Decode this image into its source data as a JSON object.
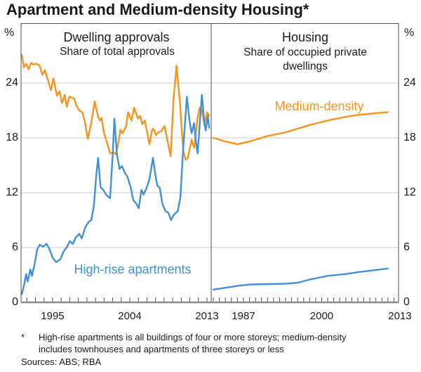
{
  "title": "Apartment and Medium-density Housing*",
  "axis": {
    "unit": "%"
  },
  "footnote": {
    "marker": "*",
    "line1": "High-rise apartments is all buildings of four or more storeys; medium-density",
    "line2": "includes townhouses and apartments of three storeys or less",
    "sources": "Sources: ABS; RBA"
  },
  "colors": {
    "medium_density": "#f7941d",
    "high_rise": "#4190d6",
    "grid": "#c8c8c8",
    "border": "#4d4d4d",
    "baseline": "#8c8c8c"
  },
  "chart_data": [
    {
      "type": "line",
      "panel": "left",
      "title": "Dwelling approvals",
      "subtitle": "Share of total approvals",
      "unit": "%",
      "x_range": [
        1991.32,
        2013.49
      ],
      "x_ticks": [
        1995,
        2004,
        2013
      ],
      "y_range": [
        0,
        30.5
      ],
      "y_ticks": [
        0,
        6,
        12,
        18,
        24
      ],
      "grid": true,
      "series": [
        {
          "name": "Medium-density",
          "color": "#f7941d",
          "points": [
            [
              1991.4,
              27.1
            ],
            [
              1991.65,
              25.7
            ],
            [
              1991.9,
              26.1
            ],
            [
              1992.2,
              25.5
            ],
            [
              1992.5,
              26.2
            ],
            [
              1992.8,
              26.0
            ],
            [
              1993.1,
              26.1
            ],
            [
              1993.5,
              25.9
            ],
            [
              1993.8,
              24.9
            ],
            [
              1994.1,
              25.4
            ],
            [
              1994.5,
              24.2
            ],
            [
              1994.8,
              23.2
            ],
            [
              1995.1,
              24.5
            ],
            [
              1995.5,
              22.6
            ],
            [
              1995.8,
              23.1
            ],
            [
              1996.1,
              21.8
            ],
            [
              1996.4,
              22.7
            ],
            [
              1996.65,
              21.4
            ],
            [
              1996.95,
              22.5
            ],
            [
              1997.25,
              22.4
            ],
            [
              1997.5,
              22.3
            ],
            [
              1997.8,
              21.5
            ],
            [
              1998.1,
              21.0
            ],
            [
              1998.45,
              20.8
            ],
            [
              1998.75,
              19.8
            ],
            [
              1999.1,
              17.9
            ],
            [
              1999.5,
              19.6
            ],
            [
              1999.9,
              22.0
            ],
            [
              2000.3,
              20.3
            ],
            [
              2000.55,
              19.9
            ],
            [
              2000.7,
              20.2
            ],
            [
              2001.0,
              18.5
            ],
            [
              2001.3,
              17.6
            ],
            [
              2001.7,
              16.3
            ],
            [
              2002.1,
              16.4
            ],
            [
              2002.35,
              16.2
            ],
            [
              2002.6,
              17.1
            ],
            [
              2002.9,
              18.9
            ],
            [
              2003.15,
              18.5
            ],
            [
              2003.55,
              19.2
            ],
            [
              2003.8,
              20.8
            ],
            [
              2004.2,
              19.9
            ],
            [
              2004.5,
              21.3
            ],
            [
              2004.95,
              20.1
            ],
            [
              2005.2,
              20.4
            ],
            [
              2005.45,
              19.5
            ],
            [
              2005.75,
              19.9
            ],
            [
              2006.2,
              17.7
            ],
            [
              2006.3,
              17.3
            ],
            [
              2006.6,
              18.9
            ],
            [
              2006.75,
              19.0
            ],
            [
              2007.05,
              18.3
            ],
            [
              2007.3,
              18.6
            ],
            [
              2007.65,
              18.7
            ],
            [
              2008.05,
              19.3
            ],
            [
              2008.5,
              17.2
            ],
            [
              2008.75,
              16.0
            ],
            [
              2009.1,
              22.2
            ],
            [
              2009.45,
              25.9
            ],
            [
              2009.85,
              21.8
            ],
            [
              2010.0,
              19.6
            ],
            [
              2010.25,
              16.5
            ],
            [
              2010.5,
              15.6
            ],
            [
              2010.75,
              15.8
            ],
            [
              2011.1,
              17.3
            ],
            [
              2011.2,
              17.8
            ],
            [
              2011.5,
              16.9
            ],
            [
              2011.75,
              18.8
            ],
            [
              2011.9,
              20.2
            ],
            [
              2012.15,
              21.3
            ],
            [
              2012.4,
              21.0
            ],
            [
              2012.7,
              19.4
            ],
            [
              2013.0,
              20.8
            ],
            [
              2013.25,
              20.4
            ]
          ]
        },
        {
          "name": "High-rise apartments",
          "color": "#4190d6",
          "points": [
            [
              1991.4,
              0.9
            ],
            [
              1991.7,
              2.0
            ],
            [
              1991.9,
              3.1
            ],
            [
              1992.1,
              2.3
            ],
            [
              1992.4,
              3.6
            ],
            [
              1992.6,
              2.9
            ],
            [
              1992.9,
              4.2
            ],
            [
              1993.2,
              5.8
            ],
            [
              1993.5,
              6.3
            ],
            [
              1993.9,
              6.1
            ],
            [
              1994.3,
              6.4
            ],
            [
              1994.6,
              5.9
            ],
            [
              1995.0,
              4.9
            ],
            [
              1995.4,
              4.4
            ],
            [
              1995.9,
              4.7
            ],
            [
              1996.3,
              5.6
            ],
            [
              1996.7,
              6.1
            ],
            [
              1997.0,
              6.7
            ],
            [
              1997.35,
              6.4
            ],
            [
              1997.7,
              7.1
            ],
            [
              1998.1,
              7.5
            ],
            [
              1998.4,
              7.0
            ],
            [
              1998.8,
              8.2
            ],
            [
              1999.2,
              8.8
            ],
            [
              1999.5,
              9.0
            ],
            [
              1999.8,
              10.5
            ],
            [
              2000.1,
              14.0
            ],
            [
              2000.3,
              15.8
            ],
            [
              2000.6,
              12.6
            ],
            [
              2000.9,
              12.3
            ],
            [
              2001.3,
              11.7
            ],
            [
              2001.7,
              11.4
            ],
            [
              2002.0,
              16.0
            ],
            [
              2002.2,
              20.1
            ],
            [
              2002.5,
              16.2
            ],
            [
              2002.8,
              14.6
            ],
            [
              2003.1,
              14.9
            ],
            [
              2003.4,
              14.2
            ],
            [
              2003.75,
              13.7
            ],
            [
              2004.1,
              12.6
            ],
            [
              2004.4,
              11.2
            ],
            [
              2004.75,
              10.8
            ],
            [
              2005.05,
              10.3
            ],
            [
              2005.35,
              12.3
            ],
            [
              2005.6,
              11.8
            ],
            [
              2005.95,
              12.5
            ],
            [
              2006.3,
              13.5
            ],
            [
              2006.7,
              15.8
            ],
            [
              2006.95,
              14.1
            ],
            [
              2007.2,
              12.8
            ],
            [
              2007.5,
              12.5
            ],
            [
              2007.8,
              10.8
            ],
            [
              2008.15,
              10.0
            ],
            [
              2008.5,
              9.8
            ],
            [
              2008.8,
              9.0
            ],
            [
              2009.15,
              9.6
            ],
            [
              2009.6,
              10.0
            ],
            [
              2009.9,
              11.5
            ],
            [
              2010.2,
              16.5
            ],
            [
              2010.65,
              22.5
            ],
            [
              2010.95,
              19.9
            ],
            [
              2011.2,
              18.5
            ],
            [
              2011.5,
              19.6
            ],
            [
              2011.65,
              18.0
            ],
            [
              2011.9,
              16.3
            ],
            [
              2012.4,
              22.7
            ],
            [
              2012.7,
              19.6
            ],
            [
              2012.85,
              18.8
            ],
            [
              2013.1,
              20.4
            ],
            [
              2013.25,
              19.1
            ]
          ]
        }
      ]
    },
    {
      "type": "line",
      "panel": "right",
      "title": "Housing",
      "subtitle": "Share of occupied private dwellings",
      "unit": "%",
      "x_range": [
        1981.64,
        2012.77
      ],
      "x_ticks": [
        1987,
        2000,
        2013
      ],
      "y_range": [
        0,
        30.5
      ],
      "y_ticks": [
        0,
        6,
        12,
        18,
        24
      ],
      "grid": true,
      "series": [
        {
          "name": "Medium-density",
          "color": "#f7941d",
          "points": [
            [
              1982,
              18.0
            ],
            [
              1984,
              17.6
            ],
            [
              1986,
              17.3
            ],
            [
              1988,
              17.6
            ],
            [
              1991,
              18.2
            ],
            [
              1994,
              18.6
            ],
            [
              1996,
              19.0
            ],
            [
              1998,
              19.4
            ],
            [
              2001,
              19.9
            ],
            [
              2004,
              20.3
            ],
            [
              2006,
              20.5
            ],
            [
              2009,
              20.7
            ],
            [
              2011,
              20.8
            ]
          ]
        },
        {
          "name": "High-rise apartments",
          "color": "#4190d6",
          "points": [
            [
              1982,
              1.4
            ],
            [
              1984,
              1.6
            ],
            [
              1986,
              1.8
            ],
            [
              1988,
              1.95
            ],
            [
              1991,
              2.0
            ],
            [
              1994,
              2.05
            ],
            [
              1996,
              2.15
            ],
            [
              1998,
              2.5
            ],
            [
              2001,
              2.9
            ],
            [
              2004,
              3.1
            ],
            [
              2006,
              3.3
            ],
            [
              2009,
              3.55
            ],
            [
              2011,
              3.7
            ]
          ]
        }
      ]
    }
  ]
}
